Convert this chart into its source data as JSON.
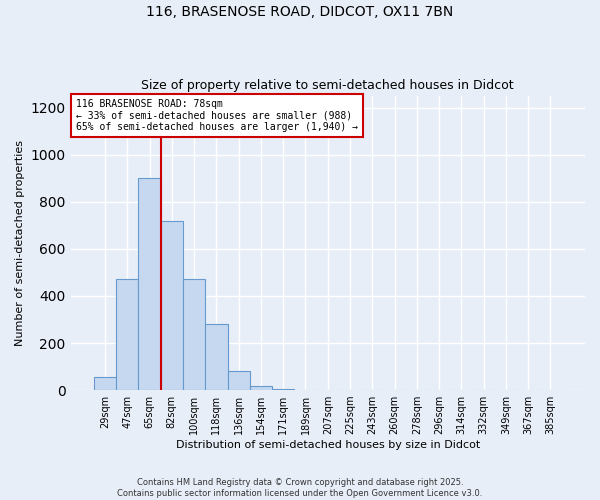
{
  "title_line1": "116, BRASENOSE ROAD, DIDCOT, OX11 7BN",
  "title_line2": "Size of property relative to semi-detached houses in Didcot",
  "xlabel": "Distribution of semi-detached houses by size in Didcot",
  "ylabel": "Number of semi-detached properties",
  "footer_line1": "Contains HM Land Registry data © Crown copyright and database right 2025.",
  "footer_line2": "Contains public sector information licensed under the Open Government Licence v3.0.",
  "bar_labels": [
    "29sqm",
    "47sqm",
    "65sqm",
    "82sqm",
    "100sqm",
    "118sqm",
    "136sqm",
    "154sqm",
    "171sqm",
    "189sqm",
    "207sqm",
    "225sqm",
    "243sqm",
    "260sqm",
    "278sqm",
    "296sqm",
    "314sqm",
    "332sqm",
    "349sqm",
    "367sqm",
    "385sqm"
  ],
  "bar_values": [
    55,
    470,
    900,
    720,
    470,
    280,
    80,
    18,
    5,
    0,
    0,
    0,
    0,
    0,
    0,
    0,
    0,
    0,
    0,
    0,
    0
  ],
  "bar_color": "#c5d8f0",
  "bar_edge_color": "#6699cc",
  "vline_pos": 2.5,
  "vline_color": "#cc0000",
  "property_label": "116 BRASENOSE ROAD: 78sqm",
  "pct_smaller": 33,
  "pct_larger": 65,
  "count_smaller": 988,
  "count_larger": 1940,
  "ann_edge_color": "#cc0000",
  "background_color": "#e8eef8",
  "ylim": [
    0,
    1250
  ],
  "yticks": [
    0,
    200,
    400,
    600,
    800,
    1000,
    1200
  ]
}
